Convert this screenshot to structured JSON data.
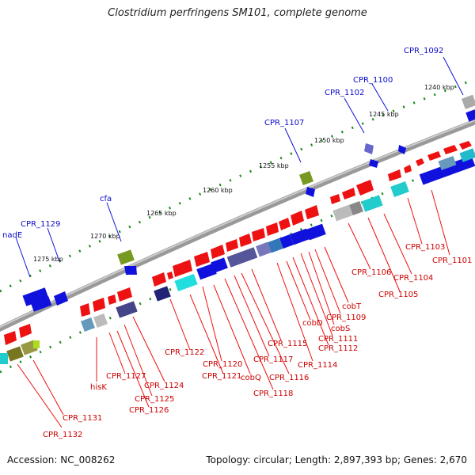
{
  "header": {
    "title": "Clostridium perfringens SM101, complete genome"
  },
  "footer": {
    "accession": "Accession: NC_008262",
    "topology": "Topology: circular; Length: 2,897,393 bp; Genes: 2,670"
  },
  "ticks": [
    "1240 kbp",
    "1245 kbp",
    "1250 kbp",
    "1255 kbp",
    "1260 kbp",
    "1265 kbp",
    "1270 kbp",
    "1275 kbp"
  ],
  "labels": {
    "blue": [
      "CPR_1092",
      "CPR_1100",
      "CPR_1102",
      "CPR_1107",
      "cfa",
      "CPR_1129",
      "nadE"
    ],
    "red": [
      "CPR_1101",
      "CPR_1103",
      "CPR_1104",
      "CPR_1105",
      "CPR_1106",
      "cobT",
      "CPR_1109",
      "cobS",
      "CPR_1111",
      "CPR_1112",
      "cobD",
      "CPR_1114",
      "CPR_1115",
      "CPR_1116",
      "CPR_1117",
      "CPR_1118",
      "cobQ",
      "CPR_1120",
      "CPR_1121",
      "CPR_1122",
      "CPR_1124",
      "CPR_1125",
      "CPR_1126",
      "CPR_1127",
      "hisK",
      "CPR_1131",
      "CPR_1132"
    ]
  },
  "colors": {
    "forward_gene": "#ee1111",
    "reverse_gene": "#1111dd",
    "backbone": "#888888",
    "tick": "#1a8a1a"
  }
}
